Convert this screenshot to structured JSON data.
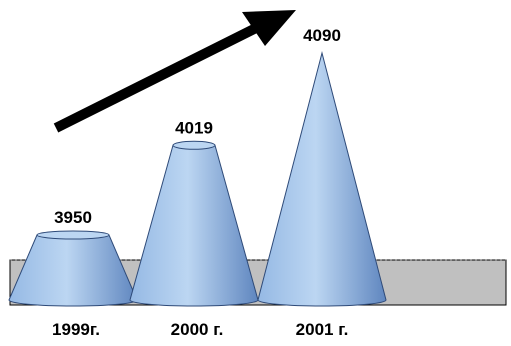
{
  "chart_data": {
    "type": "bar",
    "bar_shape": "cone",
    "categories": [
      "1999г.",
      "2000 г.",
      "2001 г."
    ],
    "values": [
      3950,
      4019,
      4090
    ],
    "data_labels": [
      "3950",
      "4019",
      "4090"
    ],
    "title": "",
    "xlabel": "",
    "ylabel": "",
    "grid": false,
    "legend": "none",
    "trend_arrow": "up-right",
    "colors": {
      "cone_light": "#bcd6f2",
      "cone_mid": "#95b9e4",
      "cone_dark": "#5f86bf",
      "cone_outline": "#2e4a78",
      "floor": "#c0c0c0",
      "floor_outline": "#000000",
      "arrow": "#000000"
    }
  }
}
